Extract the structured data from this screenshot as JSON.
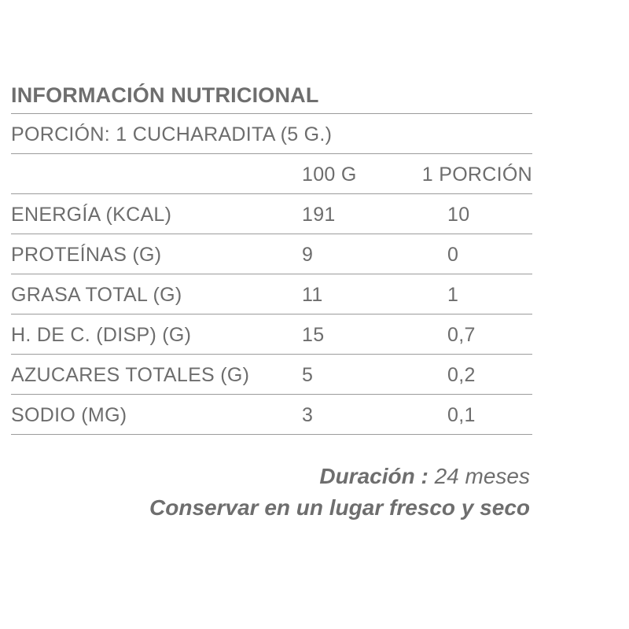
{
  "title": "INFORMACIÓN NUTRICIONAL",
  "portion": "PORCIÓN: 1 CUCHARADITA (5 G.)",
  "columns": [
    "",
    "100 G",
    "1 PORCIÓN"
  ],
  "rows": [
    {
      "label": "ENERGÍA (KCAL)",
      "per100": "191",
      "perPortion": "10"
    },
    {
      "label": "PROTEÍNAS (G)",
      "per100": "9",
      "perPortion": "0"
    },
    {
      "label": "GRASA TOTAL (G)",
      "per100": "11",
      "perPortion": "1"
    },
    {
      "label": "H. DE C. (DISP) (G)",
      "per100": "15",
      "perPortion": "0,7"
    },
    {
      "label": "AZUCARES TOTALES (G)",
      "per100": "5",
      "perPortion": "0,2"
    },
    {
      "label": "SODIO (MG)",
      "per100": "3",
      "perPortion": "0,1"
    }
  ],
  "footer": {
    "duration_label": "Duración :",
    "duration_value": "24 meses",
    "storage": "Conservar en un lugar fresco y seco"
  }
}
